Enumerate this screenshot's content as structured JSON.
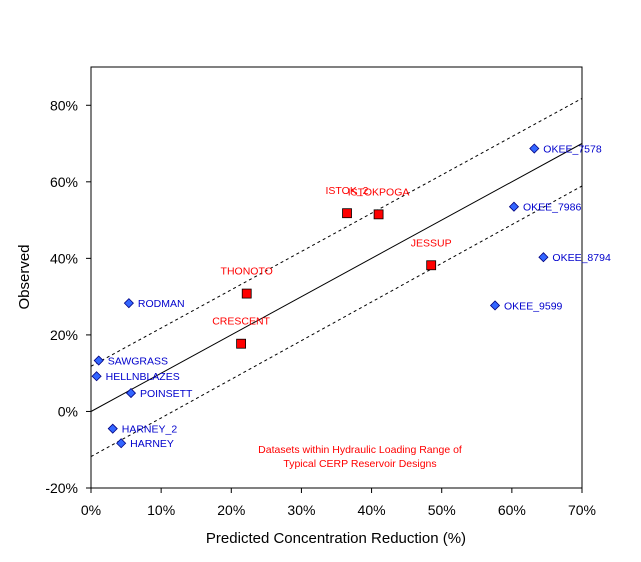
{
  "chart_data": {
    "type": "scatter",
    "title": "",
    "xlabel": "Predicted Concentration Reduction (%)",
    "ylabel": "Observed",
    "xlim": [
      0,
      70
    ],
    "ylim": [
      -20,
      90
    ],
    "x_ticks": [
      0,
      10,
      20,
      30,
      40,
      50,
      60,
      70
    ],
    "x_tick_labels": [
      "0%",
      "10%",
      "20%",
      "30%",
      "40%",
      "50%",
      "60%",
      "70%"
    ],
    "y_ticks": [
      -20,
      0,
      20,
      40,
      60,
      80
    ],
    "y_tick_labels": [
      "-20%",
      "0%",
      "20%",
      "40%",
      "60%",
      "80%"
    ],
    "grid": false,
    "legend": "none",
    "colors": {
      "blue": "#3366ff",
      "blue_label": "#0000cc",
      "red": "#ff0000",
      "red_label": "#ff0000",
      "line": "#000000"
    },
    "series": [
      {
        "marker": "diamond",
        "points": [
          {
            "label": "OKEE_7578",
            "x": 63.2,
            "y": 68.7
          },
          {
            "label": "OKEE_7986",
            "x": 60.3,
            "y": 53.5
          },
          {
            "label": "OKEE_8794",
            "x": 64.5,
            "y": 40.3
          },
          {
            "label": "OKEE_9599",
            "x": 57.6,
            "y": 27.7
          },
          {
            "label": "RODMAN",
            "x": 5.4,
            "y": 28.3
          },
          {
            "label": "SAWGRASS",
            "x": 1.1,
            "y": 13.3
          },
          {
            "label": "HELLNBLAZES",
            "x": 0.8,
            "y": 9.2
          },
          {
            "label": "POINSETT",
            "x": 5.7,
            "y": 4.8
          },
          {
            "label": "HARNEY_2",
            "x": 3.1,
            "y": -4.5
          },
          {
            "label": "HARNEY",
            "x": 4.3,
            "y": -8.3
          }
        ]
      },
      {
        "marker": "square",
        "points": [
          {
            "label": "ISTOK_2",
            "x": 36.5,
            "y": 51.8
          },
          {
            "label": "ISTOKPOGA",
            "x": 41.0,
            "y": 51.5
          },
          {
            "label": "JESSUP",
            "x": 48.5,
            "y": 38.2
          },
          {
            "label": "THONOTO",
            "x": 22.2,
            "y": 30.8
          },
          {
            "label": "CRESCENT",
            "x": 21.4,
            "y": 17.7
          }
        ]
      }
    ],
    "lines": [
      {
        "style": "solid",
        "x": [
          0,
          70
        ],
        "y": [
          0,
          70
        ]
      },
      {
        "style": "dashed",
        "x": [
          0,
          70
        ],
        "y": [
          11.8,
          81.8
        ]
      },
      {
        "style": "dashed",
        "x": [
          0,
          70
        ],
        "y": [
          -11.8,
          58.9
        ]
      }
    ],
    "annotation": [
      "Datasets within Hydraulic Loading Range of",
      "Typical CERP Reservoir Designs"
    ]
  }
}
